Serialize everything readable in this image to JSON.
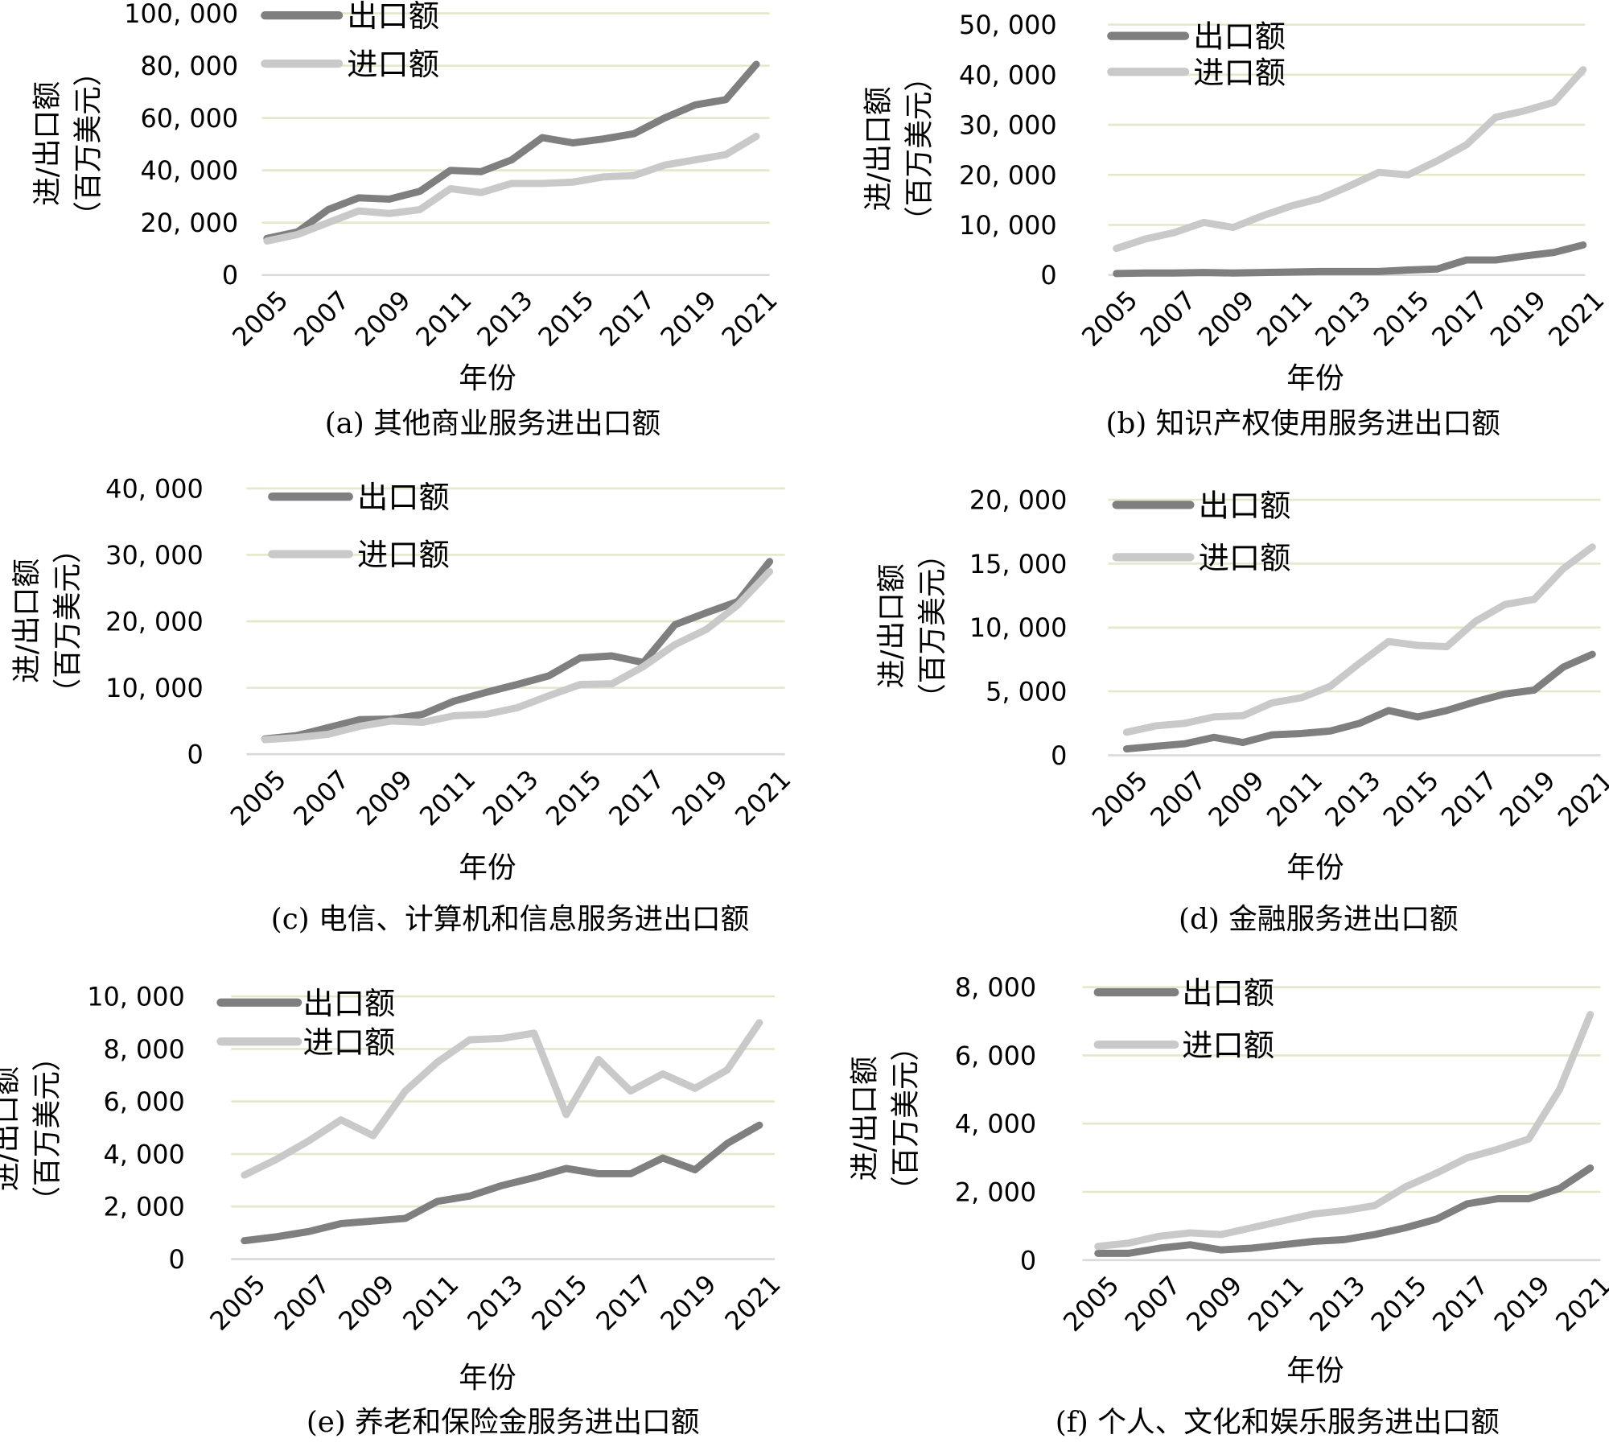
{
  "colors": {
    "export": "#7f7f7f",
    "import": "#c9c9c9",
    "grid": "#e2e8c8",
    "baseline": "#d9d9d9"
  },
  "chart_data": [
    {
      "type": "line",
      "id": "a",
      "caption": "(a)  其他商业服务进出口额",
      "xlabel": "年份",
      "ylabel": [
        "进/出口额",
        "（百万美元）"
      ],
      "ylim": [
        0,
        100000
      ],
      "yticks": [
        0,
        20000,
        40000,
        60000,
        80000,
        100000
      ],
      "ytick_labels": [
        "0",
        "20, 000",
        "40, 000",
        "60, 000",
        "80, 000",
        "100, 000"
      ],
      "x": [
        2005,
        2006,
        2007,
        2008,
        2009,
        2010,
        2011,
        2012,
        2013,
        2014,
        2015,
        2016,
        2017,
        2018,
        2019,
        2020,
        2021
      ],
      "xtick_labels": [
        "2005",
        "2007",
        "2009",
        "2011",
        "2013",
        "2015",
        "2017",
        "2019",
        "2021"
      ],
      "legend_position": "top-left",
      "series": [
        {
          "name": "出口额",
          "values": [
            14000,
            16500,
            25000,
            29500,
            29000,
            32000,
            40000,
            39500,
            44000,
            52500,
            50500,
            52000,
            54000,
            60000,
            65000,
            67000,
            80500
          ]
        },
        {
          "name": "进口额",
          "values": [
            13000,
            15500,
            20000,
            24500,
            23500,
            25000,
            33000,
            31500,
            35000,
            35000,
            35500,
            37500,
            38000,
            42000,
            44000,
            46000,
            53000
          ]
        }
      ]
    },
    {
      "type": "line",
      "id": "b",
      "caption": "(b)  知识产权使用服务进出口额",
      "xlabel": "年份",
      "ylabel": [
        "进/出口额",
        "（百万美元）"
      ],
      "ylim": [
        0,
        50000
      ],
      "yticks": [
        0,
        10000,
        20000,
        30000,
        40000,
        50000
      ],
      "ytick_labels": [
        "0",
        "10, 000",
        "20, 000",
        "30, 000",
        "40, 000",
        "50, 000"
      ],
      "x": [
        2005,
        2006,
        2007,
        2008,
        2009,
        2010,
        2011,
        2012,
        2013,
        2014,
        2015,
        2016,
        2017,
        2018,
        2019,
        2020,
        2021
      ],
      "xtick_labels": [
        "2005",
        "2007",
        "2009",
        "2011",
        "2013",
        "2015",
        "2017",
        "2019",
        "2021"
      ],
      "legend_position": "top-left",
      "series": [
        {
          "name": "出口额",
          "values": [
            300,
            400,
            400,
            500,
            400,
            500,
            600,
            700,
            700,
            700,
            1000,
            1200,
            3000,
            3000,
            3800,
            4500,
            6000
          ]
        },
        {
          "name": "进口额",
          "values": [
            5300,
            7200,
            8500,
            10500,
            9500,
            11800,
            13800,
            15300,
            17800,
            20500,
            20000,
            22800,
            26000,
            31500,
            32800,
            34500,
            41000
          ]
        }
      ]
    },
    {
      "type": "line",
      "id": "c",
      "caption": "(c)  电信、计算机和信息服务进出口额",
      "xlabel": "年份",
      "ylabel": [
        "进/出口额",
        "（百万美元）"
      ],
      "ylim": [
        0,
        40000
      ],
      "yticks": [
        0,
        10000,
        20000,
        30000,
        40000
      ],
      "ytick_labels": [
        "0",
        "10, 000",
        "20, 000",
        "30, 000",
        "40, 000"
      ],
      "x": [
        2005,
        2006,
        2007,
        2008,
        2009,
        2010,
        2011,
        2012,
        2013,
        2014,
        2015,
        2016,
        2017,
        2018,
        2019,
        2020,
        2021
      ],
      "xtick_labels": [
        "2005",
        "2007",
        "2009",
        "2011",
        "2013",
        "2015",
        "2017",
        "2019",
        "2021"
      ],
      "legend_position": "top-left",
      "series": [
        {
          "name": "出口额",
          "values": [
            2300,
            2800,
            4000,
            5200,
            5300,
            6000,
            8000,
            9300,
            10500,
            11800,
            14500,
            14800,
            13800,
            19500,
            21300,
            23000,
            29000
          ]
        },
        {
          "name": "进口额",
          "values": [
            2200,
            2500,
            3000,
            4200,
            5000,
            4800,
            5800,
            6000,
            7000,
            8800,
            10500,
            10600,
            13200,
            16500,
            18800,
            22500,
            27500
          ]
        }
      ]
    },
    {
      "type": "line",
      "id": "d",
      "caption": "(d)  金融服务进出口额",
      "xlabel": "年份",
      "ylabel": [
        "进/出口额",
        "（百万美元）"
      ],
      "ylim": [
        0,
        20000
      ],
      "yticks": [
        0,
        5000,
        10000,
        15000,
        20000
      ],
      "ytick_labels": [
        "0",
        "5, 000",
        "10, 000",
        "15, 000",
        "20, 000"
      ],
      "x": [
        2005,
        2006,
        2007,
        2008,
        2009,
        2010,
        2011,
        2012,
        2013,
        2014,
        2015,
        2016,
        2017,
        2018,
        2019,
        2020,
        2021
      ],
      "xtick_labels": [
        "2005",
        "2007",
        "2009",
        "2011",
        "2013",
        "2015",
        "2017",
        "2019",
        "2021"
      ],
      "legend_position": "top-left",
      "series": [
        {
          "name": "出口额",
          "values": [
            500,
            700,
            900,
            1400,
            1000,
            1600,
            1700,
            1900,
            2500,
            3500,
            3000,
            3500,
            4200,
            4800,
            5100,
            6900,
            7900
          ]
        },
        {
          "name": "进口额",
          "values": [
            1800,
            2300,
            2500,
            3000,
            3100,
            4100,
            4500,
            5400,
            7200,
            8900,
            8600,
            8500,
            10500,
            11800,
            12200,
            14600,
            16300
          ]
        }
      ]
    },
    {
      "type": "line",
      "id": "e",
      "caption": "(e)  养老和保险金服务进出口额",
      "xlabel": "年份",
      "ylabel": [
        "进/出口额",
        "（百万美元）"
      ],
      "ylim": [
        0,
        10000
      ],
      "yticks": [
        0,
        2000,
        4000,
        6000,
        8000,
        10000
      ],
      "ytick_labels": [
        "0",
        "2, 000",
        "4, 000",
        "6, 000",
        "8, 000",
        "10, 000"
      ],
      "x": [
        2005,
        2006,
        2007,
        2008,
        2009,
        2010,
        2011,
        2012,
        2013,
        2014,
        2015,
        2016,
        2017,
        2018,
        2019,
        2020,
        2021
      ],
      "xtick_labels": [
        "2005",
        "2007",
        "2009",
        "2011",
        "2013",
        "2015",
        "2017",
        "2019",
        "2021"
      ],
      "legend_position": "top-left",
      "series": [
        {
          "name": "出口额",
          "values": [
            700,
            850,
            1050,
            1350,
            1450,
            1550,
            2200,
            2400,
            2800,
            3100,
            3450,
            3250,
            3250,
            3850,
            3400,
            4400,
            5100
          ]
        },
        {
          "name": "进口额",
          "values": [
            3200,
            3800,
            4500,
            5300,
            4700,
            6400,
            7500,
            8350,
            8400,
            8600,
            5500,
            7600,
            6400,
            7050,
            6500,
            7200,
            9000
          ]
        }
      ]
    },
    {
      "type": "line",
      "id": "f",
      "caption": "(f)  个人、文化和娱乐服务进出口额",
      "xlabel": "年份",
      "ylabel": [
        "进/出口额",
        "（百万美元）"
      ],
      "ylim": [
        0,
        8000
      ],
      "yticks": [
        0,
        2000,
        4000,
        6000,
        8000
      ],
      "ytick_labels": [
        "0",
        "2, 000",
        "4, 000",
        "6, 000",
        "8, 000"
      ],
      "x": [
        2005,
        2006,
        2007,
        2008,
        2009,
        2010,
        2011,
        2012,
        2013,
        2014,
        2015,
        2016,
        2017,
        2018,
        2019,
        2020,
        2021
      ],
      "xtick_labels": [
        "2005",
        "2007",
        "2009",
        "2011",
        "2013",
        "2015",
        "2017",
        "2019",
        "2021"
      ],
      "legend_position": "top-left",
      "series": [
        {
          "name": "出口额",
          "values": [
            200,
            200,
            350,
            450,
            300,
            350,
            450,
            550,
            600,
            750,
            950,
            1200,
            1650,
            1800,
            1800,
            2100,
            2700
          ]
        },
        {
          "name": "进口额",
          "values": [
            400,
            500,
            700,
            800,
            750,
            950,
            1150,
            1350,
            1450,
            1600,
            2150,
            2550,
            3000,
            3250,
            3550,
            5000,
            7200
          ]
        }
      ]
    }
  ]
}
